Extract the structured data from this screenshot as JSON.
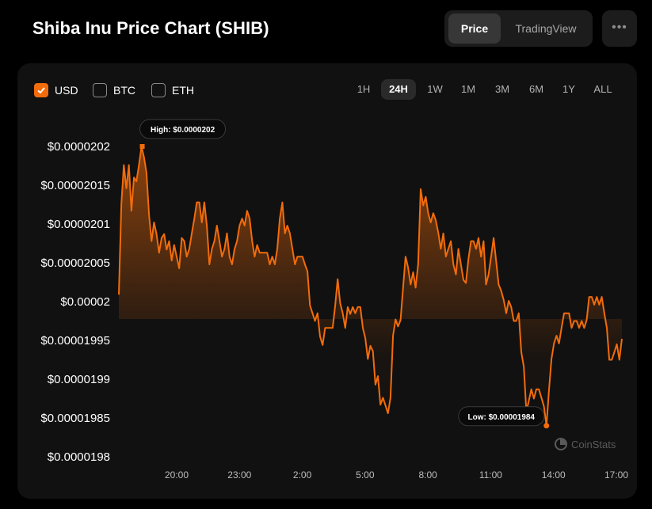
{
  "header": {
    "title": "Shiba Inu Price Chart (SHIB)"
  },
  "view_toggle": {
    "price": "Price",
    "tradingview": "TradingView",
    "active": "price"
  },
  "more": {
    "icon": "more-horizontal-icon"
  },
  "currencies": [
    {
      "label": "USD",
      "checked": true
    },
    {
      "label": "BTC",
      "checked": false
    },
    {
      "label": "ETH",
      "checked": false
    }
  ],
  "timeframes": [
    "1H",
    "24H",
    "1W",
    "1M",
    "3M",
    "6M",
    "1Y",
    "ALL"
  ],
  "active_timeframe": "24H",
  "brand": {
    "name": "CoinStats",
    "icon": "coinstats-logo-icon"
  },
  "colors": {
    "line": "#f26c0b",
    "accent": "#f26c0b",
    "panel": "#111111"
  },
  "chart_data": {
    "type": "area",
    "x_tick_labels": [
      "20:00",
      "23:00",
      "2:00",
      "5:00",
      "8:00",
      "11:00",
      "14:00",
      "17:00"
    ],
    "y_tick_labels": [
      "$0.0000202",
      "$0.00002015",
      "$0.0000201",
      "$0.00002005",
      "$0.00002",
      "$0.00001995",
      "$0.0000199",
      "$0.00001985",
      "$0.0000198"
    ],
    "ylim": [
      1.98e-05,
      2.02e-05
    ],
    "grid": false,
    "annotations": {
      "high_label": "High: $0.0000202",
      "high_value": 2.02e-05,
      "low_label": "Low: $0.00001984",
      "low_value": 1.984e-05
    },
    "series": [
      {
        "values": [
          2.0009e-05,
          2.0126e-05,
          2.0176e-05,
          2.0146e-05,
          2.0176e-05,
          2.0117e-05,
          2.016e-05,
          2.0155e-05,
          2.0176e-05,
          2.02e-05,
          2.0186e-05,
          2.0166e-05,
          2.0112e-05,
          2.0078e-05,
          2.0102e-05,
          2.0087e-05,
          2.0063e-05,
          2.0082e-05,
          2.0087e-05,
          2.0067e-05,
          2.0078e-05,
          2.0053e-05,
          2.0073e-05,
          2.0058e-05,
          2.0043e-05,
          2.0082e-05,
          2.0078e-05,
          2.0058e-05,
          2.0068e-05,
          2.0088e-05,
          2.0107e-05,
          2.0128e-05,
          2.0128e-05,
          2.0102e-05,
          2.0128e-05,
          2.0098e-05,
          2.0048e-05,
          2.0068e-05,
          2.0078e-05,
          2.0098e-05,
          2.0078e-05,
          2.0058e-05,
          2.0068e-05,
          2.0088e-05,
          2.0058e-05,
          2.0048e-05,
          2.0068e-05,
          2.0078e-05,
          2.0098e-05,
          2.0107e-05,
          2.0098e-05,
          2.0117e-05,
          2.0107e-05,
          2.0078e-05,
          2.0058e-05,
          2.0073e-05,
          2.0063e-05,
          2.0063e-05,
          2.0063e-05,
          2.0063e-05,
          2.0048e-05,
          2.0058e-05,
          2.0048e-05,
          2.0068e-05,
          2.0107e-05,
          2.0128e-05,
          2.0088e-05,
          2.0098e-05,
          2.0088e-05,
          2.0068e-05,
          2.0048e-05,
          2.0058e-05,
          2.0058e-05,
          2.0058e-05,
          2.0048e-05,
          2.0039e-05,
          1.9995e-05,
          1.9985e-05,
          1.9975e-05,
          1.9985e-05,
          1.9955e-05,
          1.9944e-05,
          1.9966e-05,
          1.9966e-05,
          1.9966e-05,
          1.9966e-05,
          1.9995e-05,
          2.0029e-05,
          1.9998e-05,
          1.9985e-05,
          1.9966e-05,
          1.9993e-05,
          1.9984e-05,
          1.9993e-05,
          1.9985e-05,
          1.9993e-05,
          1.9993e-05,
          1.9966e-05,
          1.9953e-05,
          1.9926e-05,
          1.9943e-05,
          1.9936e-05,
          1.9893e-05,
          1.9904e-05,
          1.9867e-05,
          1.9876e-05,
          1.9866e-05,
          1.9856e-05,
          1.9876e-05,
          1.9956e-05,
          1.9977e-05,
          1.9968e-05,
          1.9976e-05,
          2.0018e-05,
          2.0058e-05,
          2.0044e-05,
          2.0022e-05,
          2.0038e-05,
          2.0018e-05,
          2.0048e-05,
          2.0145e-05,
          2.0124e-05,
          2.0135e-05,
          2.0114e-05,
          2.0102e-05,
          2.0114e-05,
          2.0105e-05,
          2.0089e-05,
          2.0068e-05,
          2.0088e-05,
          2.0058e-05,
          2.0068e-05,
          2.0078e-05,
          2.0048e-05,
          2.0035e-05,
          2.0068e-05,
          2.0048e-05,
          2.0028e-05,
          2.0024e-05,
          2.0055e-05,
          2.0078e-05,
          2.0078e-05,
          2.0068e-05,
          2.0082e-05,
          2.0058e-05,
          2.0078e-05,
          2.0022e-05,
          2.0035e-05,
          2.0058e-05,
          2.0082e-05,
          2.0052e-05,
          2.0022e-05,
          2.0014e-05,
          2.0002e-05,
          1.9985e-05,
          2.0001e-05,
          1.9993e-05,
          1.9975e-05,
          1.9975e-05,
          1.9985e-05,
          1.9935e-05,
          1.9916e-05,
          1.9858e-05,
          1.9872e-05,
          1.9887e-05,
          1.9875e-05,
          1.9887e-05,
          1.9887e-05,
          1.9876e-05,
          1.9865e-05,
          1.984e-05,
          1.9885e-05,
          1.9926e-05,
          1.9946e-05,
          1.9956e-05,
          1.9946e-05,
          1.9966e-05,
          1.9985e-05,
          1.9985e-05,
          1.9985e-05,
          1.9966e-05,
          1.9975e-05,
          1.9975e-05,
          1.9966e-05,
          1.9975e-05,
          1.9966e-05,
          1.9976e-05,
          2.0006e-05,
          2.0006e-05,
          1.9996e-05,
          2.0006e-05,
          1.9996e-05,
          2.0006e-05,
          1.9985e-05,
          1.9966e-05,
          1.9925e-05,
          1.9925e-05,
          1.9935e-05,
          1.9945e-05,
          1.9925e-05,
          1.9952e-05
        ]
      }
    ]
  }
}
